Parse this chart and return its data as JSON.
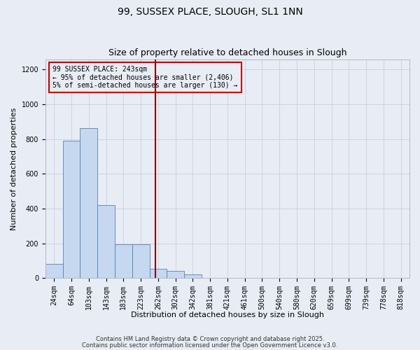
{
  "title": "99, SUSSEX PLACE, SLOUGH, SL1 1NN",
  "subtitle": "Size of property relative to detached houses in Slough",
  "xlabel": "Distribution of detached houses by size in Slough",
  "ylabel": "Number of detached properties",
  "bins": [
    "24sqm",
    "64sqm",
    "103sqm",
    "143sqm",
    "183sqm",
    "223sqm",
    "262sqm",
    "302sqm",
    "342sqm",
    "381sqm",
    "421sqm",
    "461sqm",
    "500sqm",
    "540sqm",
    "580sqm",
    "620sqm",
    "659sqm",
    "699sqm",
    "739sqm",
    "778sqm",
    "818sqm"
  ],
  "values": [
    80,
    790,
    865,
    420,
    195,
    195,
    55,
    40,
    20,
    0,
    0,
    0,
    0,
    0,
    0,
    0,
    0,
    0,
    0,
    0,
    3
  ],
  "bar_color": "#c5d8f0",
  "bar_edge_color": "#5580b0",
  "grid_color": "#ccd4e0",
  "bg_color": "#e8edf5",
  "vline_x": 5.85,
  "vline_color": "#8b0000",
  "legend_text_line1": "99 SUSSEX PLACE: 243sqm",
  "legend_text_line2": "← 95% of detached houses are smaller (2,406)",
  "legend_text_line3": "5% of semi-detached houses are larger (130) →",
  "legend_box_color": "#cc0000",
  "footnote1": "Contains HM Land Registry data © Crown copyright and database right 2025.",
  "footnote2": "Contains public sector information licensed under the Open Government Licence v3.0.",
  "ylim": [
    0,
    1260
  ],
  "yticks": [
    0,
    200,
    400,
    600,
    800,
    1000,
    1200
  ],
  "title_fontsize": 10,
  "subtitle_fontsize": 9,
  "axis_label_fontsize": 8,
  "tick_fontsize": 7,
  "legend_fontsize": 7,
  "footnote_fontsize": 6
}
